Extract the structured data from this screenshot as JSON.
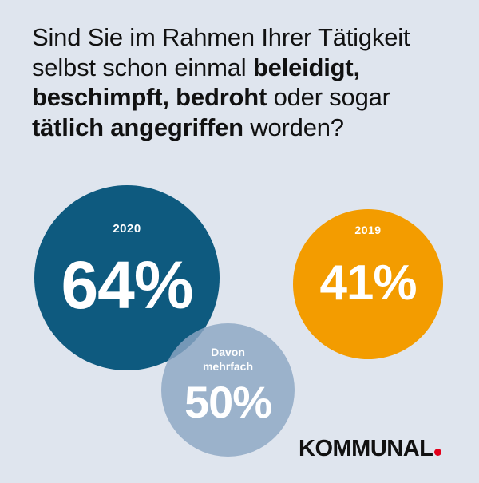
{
  "question": {
    "part1": "Sind Sie im Rahmen Ihrer Tätigkeit selbst schon einmal ",
    "bold1": "beleidigt, beschimpft, bedroht",
    "part2": " oder sogar ",
    "bold2": "tätlich angegriffen",
    "part3": " worden?"
  },
  "stats": {
    "year_2020": {
      "label": "2020",
      "value": "64%"
    },
    "year_2019": {
      "label": "2019",
      "value": "41%"
    },
    "repeated": {
      "label_line1": "Davon",
      "label_line2": "mehrfach",
      "value": "50%"
    }
  },
  "brand": {
    "name": "KOMMUNAL",
    "dot_color": "#e3001b"
  },
  "colors": {
    "background": "#dfe5ee",
    "circle_2020": "#0e5a7f",
    "circle_2019": "#f39c00",
    "circle_repeated": "#8ca6c3"
  }
}
